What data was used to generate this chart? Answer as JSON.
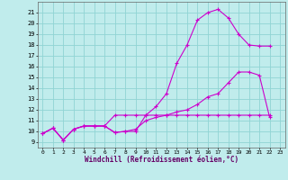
{
  "xlabel": "Windchill (Refroidissement éolien,°C)",
  "bg_color": "#c0ecec",
  "grid_color": "#90d4d4",
  "line_color": "#cc00cc",
  "xlim": [
    -0.5,
    23.5
  ],
  "ylim": [
    8.5,
    22.0
  ],
  "xticks": [
    0,
    1,
    2,
    3,
    4,
    5,
    6,
    7,
    8,
    9,
    10,
    11,
    12,
    13,
    14,
    15,
    16,
    17,
    18,
    19,
    20,
    21,
    22,
    23
  ],
  "yticks": [
    9,
    10,
    11,
    12,
    13,
    14,
    15,
    16,
    17,
    18,
    19,
    20,
    21
  ],
  "series1_x": [
    0,
    1,
    2,
    3,
    4,
    5,
    6,
    7,
    8,
    9,
    10,
    11,
    12,
    13,
    14,
    15,
    16,
    17,
    18,
    19,
    20,
    21,
    22
  ],
  "series1_y": [
    9.8,
    10.3,
    9.2,
    10.2,
    10.5,
    10.5,
    10.5,
    9.9,
    10.0,
    10.0,
    11.5,
    12.3,
    13.5,
    16.3,
    18.0,
    20.3,
    21.0,
    21.3,
    20.5,
    19.0,
    18.0,
    17.9,
    17.9
  ],
  "series2_x": [
    0,
    1,
    2,
    3,
    4,
    5,
    6,
    7,
    8,
    9,
    10,
    11,
    12,
    13,
    14,
    15,
    16,
    17,
    18,
    19,
    20,
    21,
    22
  ],
  "series2_y": [
    9.8,
    10.3,
    9.2,
    10.2,
    10.5,
    10.5,
    10.5,
    11.5,
    11.5,
    11.5,
    11.5,
    11.5,
    11.5,
    11.5,
    11.5,
    11.5,
    11.5,
    11.5,
    11.5,
    11.5,
    11.5,
    11.5,
    11.5
  ],
  "series3_x": [
    0,
    1,
    2,
    3,
    4,
    5,
    6,
    7,
    8,
    9,
    10,
    11,
    12,
    13,
    14,
    15,
    16,
    17,
    18,
    19,
    20,
    21,
    22
  ],
  "series3_y": [
    9.8,
    10.3,
    9.2,
    10.2,
    10.5,
    10.5,
    10.5,
    9.9,
    10.0,
    10.2,
    11.0,
    11.3,
    11.5,
    11.8,
    12.0,
    12.5,
    13.2,
    13.5,
    14.5,
    15.5,
    15.5,
    15.2,
    11.3
  ]
}
